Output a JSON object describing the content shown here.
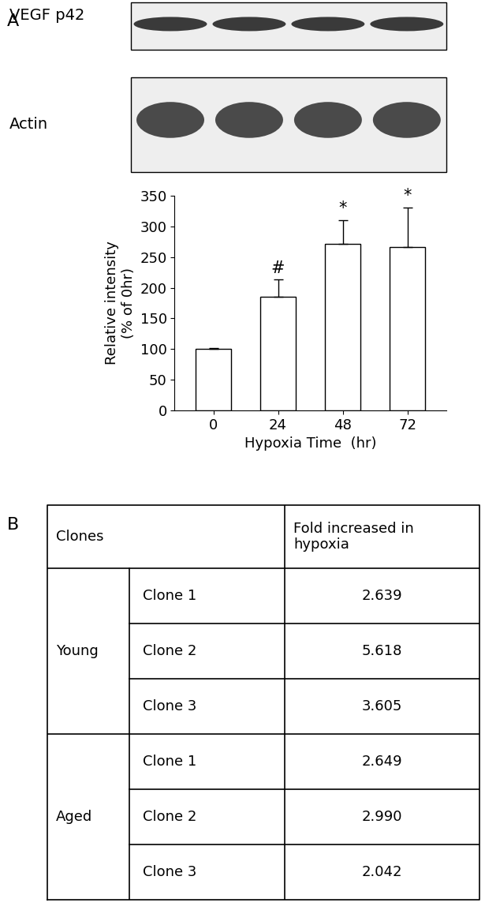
{
  "chart_data": {
    "type": "bar",
    "categories": [
      "0",
      "24",
      "48",
      "72"
    ],
    "values": [
      100,
      185,
      272,
      266
    ],
    "errors": [
      2,
      28,
      38,
      65
    ],
    "annotations": [
      null,
      "#",
      "*",
      "*"
    ],
    "xlabel": "Hypoxia Time  (hr)",
    "ylabel": "Relative intensity\n(% of 0hr)",
    "ylim": [
      0,
      350
    ],
    "yticks": [
      0,
      50,
      100,
      150,
      200,
      250,
      300,
      350
    ],
    "color": "#ffffff",
    "grid": false
  },
  "panel_labels": [
    "A",
    "B"
  ],
  "blots": [
    {
      "label": "VEGF p42"
    },
    {
      "label": "Actin"
    }
  ],
  "table": {
    "header": [
      "Clones",
      "Fold increased in\nhypoxia"
    ],
    "groups": [
      {
        "name": "Young",
        "rows": [
          [
            "Clone 1",
            "2.639"
          ],
          [
            "Clone 2",
            "5.618"
          ],
          [
            "Clone 3",
            "3.605"
          ]
        ]
      },
      {
        "name": "Aged",
        "rows": [
          [
            "Clone 1",
            "2.649"
          ],
          [
            "Clone 2",
            "2.990"
          ],
          [
            "Clone 3",
            "2.042"
          ]
        ]
      }
    ]
  }
}
